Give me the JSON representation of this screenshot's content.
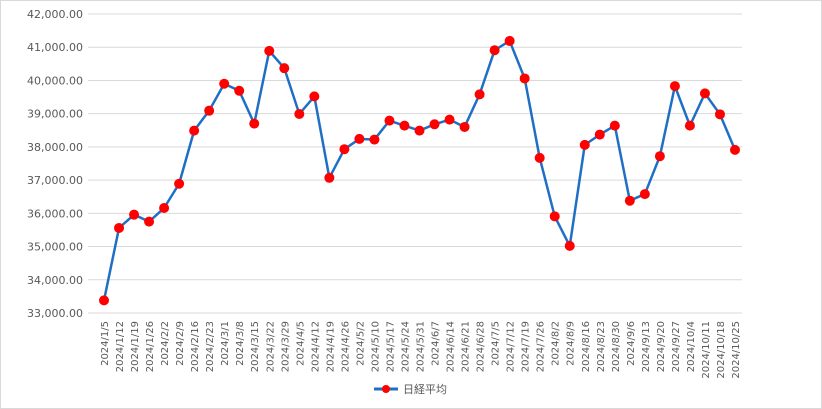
{
  "chart_data": {
    "type": "line",
    "title": "",
    "xlabel": "",
    "ylabel": "",
    "ylim": [
      33000,
      42000
    ],
    "y_tick_step": 1000,
    "y_tick_labels": [
      "33,000.00",
      "34,000.00",
      "35,000.00",
      "36,000.00",
      "37,000.00",
      "38,000.00",
      "39,000.00",
      "40,000.00",
      "41,000.00",
      "42,000.00"
    ],
    "grid": "horizontal",
    "legend_position": "bottom",
    "categories": [
      "2024/1/5",
      "2024/1/12",
      "2024/1/19",
      "2024/1/26",
      "2024/2/2",
      "2024/2/9",
      "2024/2/16",
      "2024/2/23",
      "2024/3/1",
      "2024/3/8",
      "2024/3/15",
      "2024/3/22",
      "2024/3/29",
      "2024/4/5",
      "2024/4/12",
      "2024/4/19",
      "2024/4/26",
      "2024/5/2",
      "2024/5/10",
      "2024/5/17",
      "2024/5/24",
      "2024/5/31",
      "2024/6/7",
      "2024/6/14",
      "2024/6/21",
      "2024/6/28",
      "2024/7/5",
      "2024/7/12",
      "2024/7/19",
      "2024/7/26",
      "2024/8/2",
      "2024/8/9",
      "2024/8/16",
      "2024/8/23",
      "2024/8/30",
      "2024/9/6",
      "2024/9/13",
      "2024/9/20",
      "2024/9/27",
      "2024/10/4",
      "2024/10/11",
      "2024/10/18",
      "2024/10/25"
    ],
    "series": [
      {
        "name": "日経平均",
        "line_color": "#1f6fc5",
        "marker_color": "#ff0000",
        "values": [
          33380,
          35560,
          35960,
          35750,
          36160,
          36890,
          38490,
          39090,
          39900,
          39690,
          38700,
          40890,
          40370,
          38990,
          39520,
          37070,
          37930,
          38240,
          38220,
          38790,
          38640,
          38490,
          38680,
          38820,
          38600,
          39580,
          40910,
          41190,
          40060,
          37670,
          35910,
          35020,
          38060,
          38370,
          38640,
          36380,
          36580,
          37720,
          39830,
          38640,
          39610,
          38980,
          37910
        ]
      }
    ]
  }
}
